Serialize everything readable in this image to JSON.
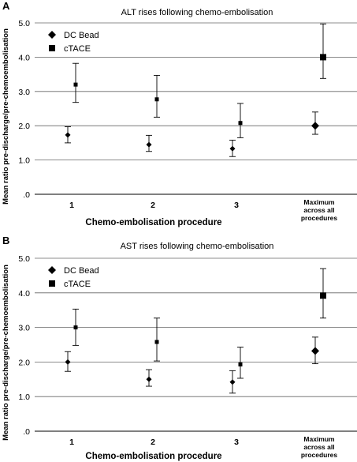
{
  "chart_data": [
    {
      "panel": "A",
      "type": "scatter",
      "title": "ALT rises following chemo-embolisation",
      "ylabel": "Mean ratio pre-discharge/pre-chemoembolisation",
      "xlabel": "Chemo-embolisation procedure",
      "categories": [
        "1",
        "2",
        "3",
        "Maximum across all procedures"
      ],
      "category_lines": [
        [
          "1"
        ],
        [
          "2"
        ],
        [
          "3"
        ],
        [
          "Maximum",
          "across all",
          "procedures"
        ]
      ],
      "yticks": [
        ".0",
        "1.0",
        "2.0",
        "3.0",
        "4.0",
        "5.0"
      ],
      "ylim": [
        0,
        5
      ],
      "legend_position": "top-left",
      "series": [
        {
          "name": "DC Bead",
          "marker": "diamond",
          "values": [
            1.73,
            1.45,
            1.33,
            2.0
          ],
          "err_low": [
            1.5,
            1.25,
            1.1,
            1.75
          ],
          "err_high": [
            1.97,
            1.72,
            1.58,
            2.4
          ]
        },
        {
          "name": "cTACE",
          "marker": "square",
          "values": [
            3.2,
            2.77,
            2.08,
            4.0
          ],
          "err_low": [
            2.68,
            2.25,
            1.65,
            3.38
          ],
          "err_high": [
            3.82,
            3.47,
            2.65,
            4.97
          ]
        }
      ]
    },
    {
      "panel": "B",
      "type": "scatter",
      "title": "AST rises following chemo-embolisation",
      "ylabel": "Mean ratio pre-discharge/pre-chemoembolisation",
      "xlabel": "Chemo-embolisation procedure",
      "categories": [
        "1",
        "2",
        "3",
        "Maximum across all procedures"
      ],
      "category_lines": [
        [
          "1"
        ],
        [
          "2"
        ],
        [
          "3"
        ],
        [
          "Maximum",
          "across all",
          "procedures"
        ]
      ],
      "yticks": [
        ".0",
        "1.0",
        "2.0",
        "3.0",
        "4.0",
        "5.0"
      ],
      "ylim": [
        0,
        5
      ],
      "legend_position": "top-left",
      "series": [
        {
          "name": "DC Bead",
          "marker": "diamond",
          "values": [
            2.0,
            1.5,
            1.42,
            2.32
          ],
          "err_low": [
            1.73,
            1.3,
            1.1,
            1.95
          ],
          "err_high": [
            2.3,
            1.78,
            1.75,
            2.72
          ]
        },
        {
          "name": "cTACE",
          "marker": "square",
          "values": [
            3.0,
            2.58,
            1.93,
            3.92
          ],
          "err_low": [
            2.48,
            2.03,
            1.53,
            3.27
          ],
          "err_high": [
            3.53,
            3.27,
            2.43,
            4.7
          ]
        }
      ]
    }
  ]
}
